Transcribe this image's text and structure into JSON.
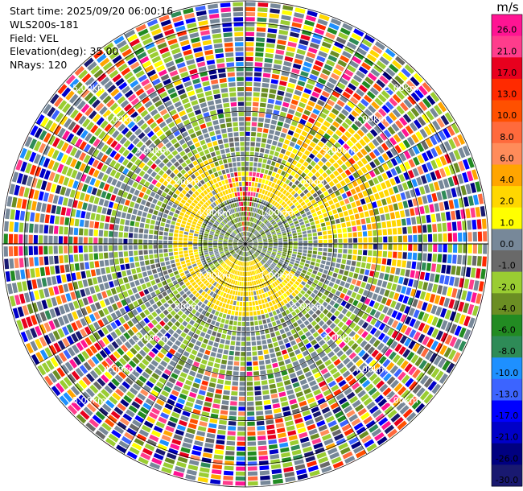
{
  "info": {
    "start_time": "Start time: 2025/09/20 06:00:16",
    "instrument": "WLS200s-181",
    "field": "Field: VEL",
    "elevation": "Elevation(deg): 35.00",
    "nrays": "NRays: 120"
  },
  "chart_data": {
    "type": "ppi",
    "title": "WLS200s-181 Field: VEL",
    "field": "VEL",
    "units": "m/s",
    "elevation_deg": 35.0,
    "n_rays": 120,
    "range_rings_km": [
      1.0,
      2.0,
      3.0,
      4.0,
      5.0
    ],
    "range_ring_labels": [
      "1.00km",
      "2.00km",
      "3.00km",
      "4.00km",
      "5.00km"
    ],
    "max_range_km": 5.5,
    "colorbar": {
      "label": "m/s",
      "ticks": [
        "26.0",
        "21.0",
        "17.0",
        "13.0",
        "10.0",
        "8.0",
        "6.0",
        "4.0",
        "2.0",
        "1.0",
        "0.0",
        "-1.0",
        "-2.0",
        "-4.0",
        "-6.0",
        "-8.0",
        "-10.0",
        "-13.0",
        "-17.0",
        "-21.0",
        "-26.0",
        "-30.0"
      ],
      "colors": [
        "#ff1493",
        "#ff3c8c",
        "#e8001e",
        "#ff2a00",
        "#ff5000",
        "#ff6a3c",
        "#ff8c5a",
        "#ffa500",
        "#ffd700",
        "#ffff00",
        "#778899",
        "#696969",
        "#9acd32",
        "#6b8e23",
        "#228b22",
        "#2e8b57",
        "#1e90ff",
        "#3c64ff",
        "#0000ff",
        "#0000c8",
        "#000080",
        "#191970"
      ]
    }
  }
}
